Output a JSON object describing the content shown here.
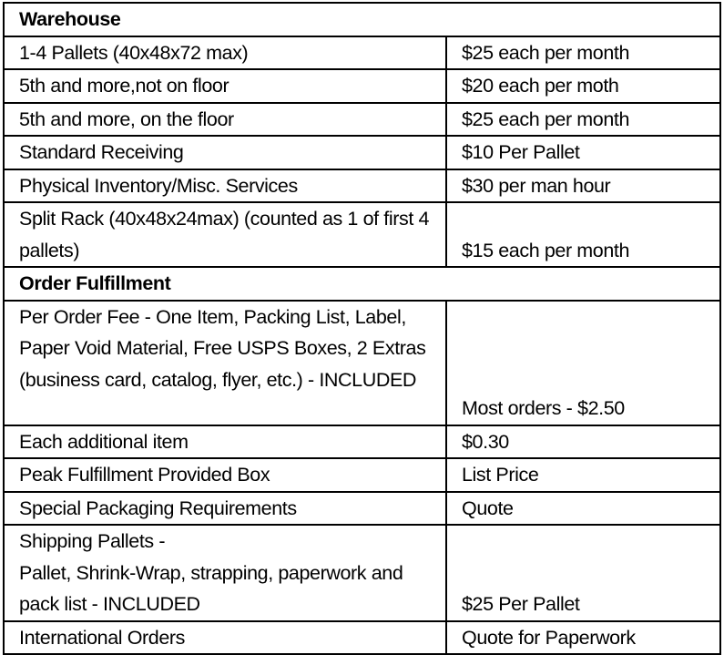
{
  "sections": [
    {
      "title": "Warehouse",
      "rows": [
        {
          "item": "1-4 Pallets  (40x48x72 max)",
          "price": "$25 each per month"
        },
        {
          "item": "5th and more,not on floor",
          "price": "$20 each per moth"
        },
        {
          "item": "5th and more, on the floor",
          "price": "$25 each per month"
        },
        {
          "item": "Standard Receiving",
          "price": "$10 Per Pallet"
        },
        {
          "item": "Physical Inventory/Misc. Services",
          "price": "$30 per man hour"
        },
        {
          "item": "Split Rack  (40x48x24max)  (counted as 1 of first 4 pallets)",
          "price": "$15 each per month"
        }
      ]
    },
    {
      "title": "Order Fulfillment",
      "rows": [
        {
          "item": "Per Order Fee - One Item, Packing List, Label, Paper Void Material, Free USPS Boxes, 2 Extras (business card, catalog, flyer, etc.)   -  INCLUDED",
          "price": "Most orders - $2.50"
        },
        {
          "item": "Each additional item",
          "price": "$0.30"
        },
        {
          "item": "Peak Fulfillment Provided Box",
          "price": "List Price"
        },
        {
          "item": "Special Packaging Requirements",
          "price": "Quote"
        },
        {
          "item": "Shipping Pallets -\nPallet, Shrink-Wrap, strapping, paperwork and pack list - INCLUDED",
          "price": "$25 Per Pallet"
        },
        {
          "item": "International Orders",
          "price": "Quote for Paperwork"
        }
      ]
    }
  ]
}
